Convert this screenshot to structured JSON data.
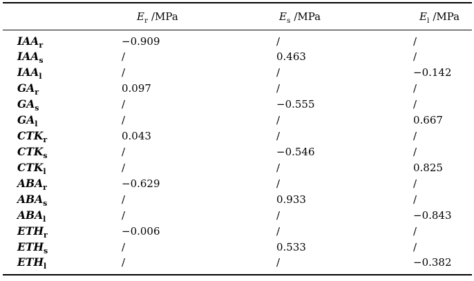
{
  "table": {
    "header": {
      "cols": [
        {
          "symbol": "E",
          "sub": "r",
          "unit": "/MPa"
        },
        {
          "symbol": "E",
          "sub": "s",
          "unit": "/MPa"
        },
        {
          "symbol": "E",
          "sub": "l",
          "unit": "/MPa"
        }
      ]
    },
    "rows": [
      {
        "label": "IAA",
        "sub": "r",
        "values": [
          "−0.909",
          "/",
          "/"
        ]
      },
      {
        "label": "IAA",
        "sub": "s",
        "values": [
          "/",
          "0.463",
          "/"
        ]
      },
      {
        "label": "IAA",
        "sub": "l",
        "values": [
          "/",
          "/",
          "−0.142"
        ]
      },
      {
        "label": "GA",
        "sub": "r",
        "values": [
          "0.097",
          "/",
          "/"
        ]
      },
      {
        "label": "GA",
        "sub": "s",
        "values": [
          "/",
          "−0.555",
          "/"
        ]
      },
      {
        "label": "GA",
        "sub": "l",
        "values": [
          "/",
          "/",
          "0.667"
        ]
      },
      {
        "label": "CTK",
        "sub": "r",
        "values": [
          "0.043",
          "/",
          "/"
        ]
      },
      {
        "label": "CTK",
        "sub": "s",
        "values": [
          "/",
          "−0.546",
          "/"
        ]
      },
      {
        "label": "CTK",
        "sub": "l",
        "values": [
          "/",
          "/",
          "0.825"
        ]
      },
      {
        "label": "ABA",
        "sub": "r",
        "values": [
          "−0.629",
          "/",
          "/"
        ]
      },
      {
        "label": "ABA",
        "sub": "s",
        "values": [
          "/",
          "0.933",
          "/"
        ]
      },
      {
        "label": "ABA",
        "sub": "l",
        "values": [
          "/",
          "/",
          "−0.843"
        ]
      },
      {
        "label": "ETH",
        "sub": "r",
        "values": [
          "−0.006",
          "/",
          "/"
        ]
      },
      {
        "label": "ETH",
        "sub": "s",
        "values": [
          "/",
          "0.533",
          "/"
        ]
      },
      {
        "label": "ETH",
        "sub": "l",
        "values": [
          "/",
          "/",
          "−0.382"
        ]
      }
    ]
  },
  "colors": {
    "text": "#000000",
    "rule": "#000000",
    "background": "#ffffff"
  }
}
